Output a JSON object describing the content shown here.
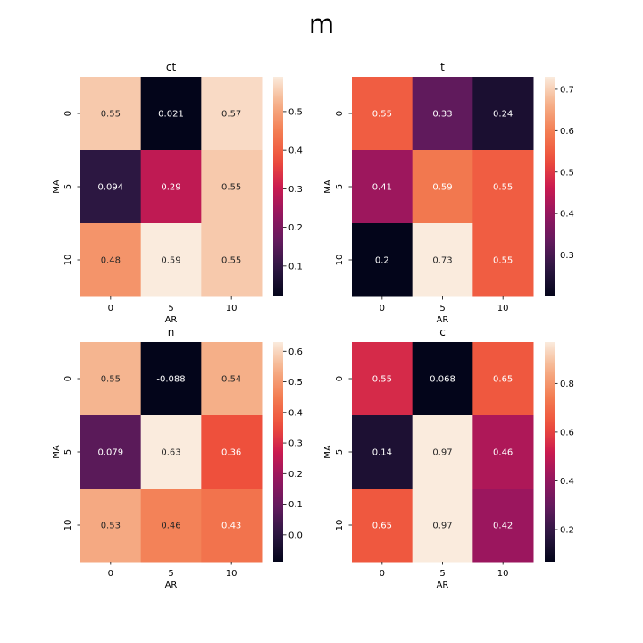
{
  "figure": {
    "title": "m"
  },
  "chart_data": [
    {
      "type": "heatmap",
      "title": "ct",
      "xlabel": "AR",
      "ylabel": "MA",
      "x_categories": [
        "0",
        "5",
        "10"
      ],
      "y_categories": [
        "0",
        "5",
        "10"
      ],
      "values": [
        [
          0.55,
          0.021,
          0.57
        ],
        [
          0.094,
          0.29,
          0.55
        ],
        [
          0.48,
          0.59,
          0.55
        ]
      ],
      "labels": [
        [
          "0.55",
          "0.021",
          "0.57"
        ],
        [
          "0.094",
          "0.29",
          "0.55"
        ],
        [
          "0.48",
          "0.59",
          "0.55"
        ]
      ],
      "colorbar": {
        "min": 0.021,
        "max": 0.59,
        "ticks": [
          "0.1",
          "0.2",
          "0.3",
          "0.4",
          "0.5"
        ]
      },
      "colormap": "rocket"
    },
    {
      "type": "heatmap",
      "title": "t",
      "xlabel": "AR",
      "ylabel": "MA",
      "x_categories": [
        "0",
        "5",
        "10"
      ],
      "y_categories": [
        "0",
        "5",
        "10"
      ],
      "values": [
        [
          0.55,
          0.33,
          0.24
        ],
        [
          0.41,
          0.59,
          0.55
        ],
        [
          0.2,
          0.73,
          0.55
        ]
      ],
      "labels": [
        [
          "0.55",
          "0.33",
          "0.24"
        ],
        [
          "0.41",
          "0.59",
          "0.55"
        ],
        [
          "0.2",
          "0.73",
          "0.55"
        ]
      ],
      "colorbar": {
        "min": 0.2,
        "max": 0.73,
        "ticks": [
          "0.3",
          "0.4",
          "0.5",
          "0.6",
          "0.7"
        ]
      },
      "colormap": "rocket"
    },
    {
      "type": "heatmap",
      "title": "n",
      "xlabel": "AR",
      "ylabel": "MA",
      "x_categories": [
        "0",
        "5",
        "10"
      ],
      "y_categories": [
        "0",
        "5",
        "10"
      ],
      "values": [
        [
          0.55,
          -0.088,
          0.54
        ],
        [
          0.079,
          0.63,
          0.36
        ],
        [
          0.53,
          0.46,
          0.43
        ]
      ],
      "labels": [
        [
          "0.55",
          "-0.088",
          "0.54"
        ],
        [
          "0.079",
          "0.63",
          "0.36"
        ],
        [
          "0.53",
          "0.46",
          "0.43"
        ]
      ],
      "colorbar": {
        "min": -0.088,
        "max": 0.63,
        "ticks": [
          "0.0",
          "0.1",
          "0.2",
          "0.3",
          "0.4",
          "0.5",
          "0.6"
        ]
      },
      "colormap": "rocket"
    },
    {
      "type": "heatmap",
      "title": "c",
      "xlabel": "AR",
      "ylabel": "MA",
      "x_categories": [
        "0",
        "5",
        "10"
      ],
      "y_categories": [
        "0",
        "5",
        "10"
      ],
      "values": [
        [
          0.55,
          0.068,
          0.65
        ],
        [
          0.14,
          0.97,
          0.46
        ],
        [
          0.65,
          0.97,
          0.42
        ]
      ],
      "labels": [
        [
          "0.55",
          "0.068",
          "0.65"
        ],
        [
          "0.14",
          "0.97",
          "0.46"
        ],
        [
          "0.65",
          "0.97",
          "0.42"
        ]
      ],
      "colorbar": {
        "min": 0.068,
        "max": 0.97,
        "ticks": [
          "0.2",
          "0.4",
          "0.6",
          "0.8"
        ]
      },
      "colormap": "rocket"
    }
  ]
}
